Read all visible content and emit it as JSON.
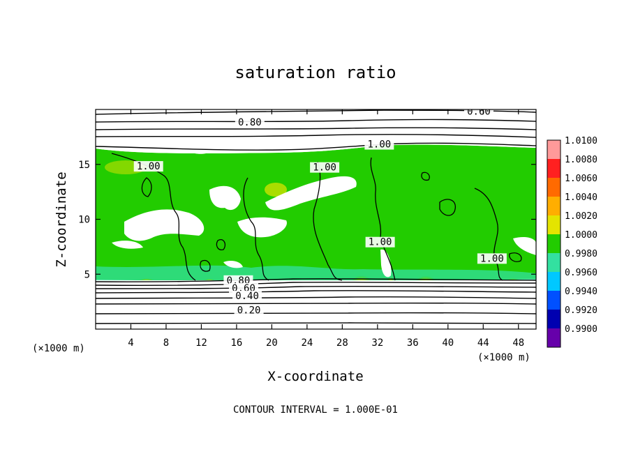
{
  "chart_data": {
    "type": "heatmap",
    "title": "saturation ratio",
    "xlabel": "X-coordinate",
    "ylabel": "Z-coordinate",
    "x_unit": "(×1000 m)",
    "z_unit": "(×1000 m)",
    "xlim": [
      0,
      50
    ],
    "ylim": [
      0,
      20
    ],
    "x_ticks": [
      4,
      8,
      12,
      16,
      20,
      24,
      28,
      32,
      36,
      40,
      44,
      48
    ],
    "y_ticks": [
      5,
      10,
      15
    ],
    "footer": "CONTOUR INTERVAL = 1.000E-01",
    "colorbar": {
      "labels": [
        "1.0100",
        "1.0080",
        "1.0060",
        "1.0040",
        "1.0020",
        "1.0000",
        "0.9980",
        "0.9960",
        "0.9940",
        "0.9920",
        "0.9900"
      ],
      "colors": [
        "#ff9a9a",
        "#ff2020",
        "#ff6a00",
        "#ffae00",
        "#e4e400",
        "#22cc00",
        "#33e0a0",
        "#00c8ff",
        "#0050ff",
        "#0000b0",
        "#6600aa"
      ]
    },
    "contour_labels": [
      {
        "text": "0.60",
        "x": 43.5,
        "z": 19.6
      },
      {
        "text": "0.80",
        "x": 17.5,
        "z": 18.6
      },
      {
        "text": "1.00",
        "x": 32.2,
        "z": 16.6
      },
      {
        "text": "1.00",
        "x": 6.0,
        "z": 14.6
      },
      {
        "text": "1.00",
        "x": 26.0,
        "z": 14.5
      },
      {
        "text": "1.00",
        "x": 32.3,
        "z": 7.7
      },
      {
        "text": "1.00",
        "x": 45.0,
        "z": 6.2
      },
      {
        "text": "0.80",
        "x": 16.2,
        "z": 4.2
      },
      {
        "text": "0.60",
        "x": 16.8,
        "z": 3.5
      },
      {
        "text": "0.40",
        "x": 17.2,
        "z": 2.8
      },
      {
        "text": "0.20",
        "x": 17.4,
        "z": 1.5
      }
    ]
  }
}
